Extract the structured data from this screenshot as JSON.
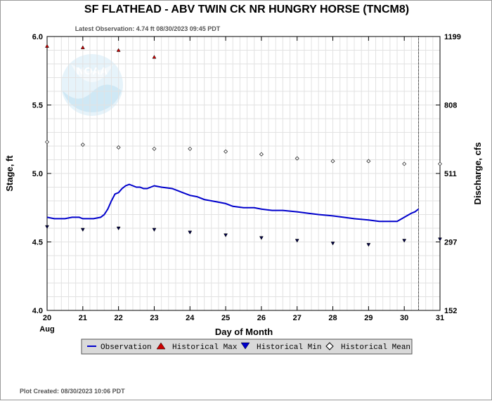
{
  "chart_data": {
    "type": "line",
    "title": "SF FLATHEAD - ABV TWIN CK NR HUNGRY HORSE  (TNCM8)",
    "subtitle": "Latest Observation: 4.74 ft 08/30/2023 09:45 PDT",
    "xlabel": "Day of Month",
    "ylabel": "Stage, ft",
    "y2label": "Discharge, cfs",
    "month_label": "Aug",
    "xlim": [
      20,
      31
    ],
    "ylim": [
      4.0,
      6.0
    ],
    "x_ticks": [
      "20",
      "21",
      "22",
      "23",
      "24",
      "25",
      "26",
      "27",
      "28",
      "29",
      "30",
      "31"
    ],
    "y_ticks": [
      "4.0",
      "4.5",
      "5.0",
      "5.5",
      "6.0"
    ],
    "y2_ticks": [
      "152",
      "297",
      "511",
      "808",
      "1199"
    ],
    "grid": true,
    "latest_observation_day": 30.4,
    "series": [
      {
        "name": "Observation",
        "color": "#0000cc",
        "points": [
          [
            20.0,
            4.68
          ],
          [
            20.2,
            4.67
          ],
          [
            20.5,
            4.67
          ],
          [
            20.7,
            4.68
          ],
          [
            20.9,
            4.68
          ],
          [
            21.0,
            4.67
          ],
          [
            21.3,
            4.67
          ],
          [
            21.5,
            4.68
          ],
          [
            21.6,
            4.7
          ],
          [
            21.7,
            4.74
          ],
          [
            21.8,
            4.8
          ],
          [
            21.9,
            4.85
          ],
          [
            22.0,
            4.86
          ],
          [
            22.1,
            4.89
          ],
          [
            22.2,
            4.91
          ],
          [
            22.3,
            4.92
          ],
          [
            22.4,
            4.91
          ],
          [
            22.5,
            4.9
          ],
          [
            22.6,
            4.9
          ],
          [
            22.7,
            4.89
          ],
          [
            22.8,
            4.89
          ],
          [
            22.9,
            4.9
          ],
          [
            23.0,
            4.91
          ],
          [
            23.2,
            4.9
          ],
          [
            23.5,
            4.89
          ],
          [
            23.8,
            4.86
          ],
          [
            24.0,
            4.84
          ],
          [
            24.2,
            4.83
          ],
          [
            24.4,
            4.81
          ],
          [
            24.6,
            4.8
          ],
          [
            24.8,
            4.79
          ],
          [
            25.0,
            4.78
          ],
          [
            25.2,
            4.76
          ],
          [
            25.5,
            4.75
          ],
          [
            25.8,
            4.75
          ],
          [
            26.0,
            4.74
          ],
          [
            26.3,
            4.73
          ],
          [
            26.6,
            4.73
          ],
          [
            27.0,
            4.72
          ],
          [
            27.3,
            4.71
          ],
          [
            27.6,
            4.7
          ],
          [
            28.0,
            4.69
          ],
          [
            28.3,
            4.68
          ],
          [
            28.6,
            4.67
          ],
          [
            29.0,
            4.66
          ],
          [
            29.3,
            4.65
          ],
          [
            29.5,
            4.65
          ],
          [
            29.8,
            4.65
          ],
          [
            30.0,
            4.68
          ],
          [
            30.2,
            4.71
          ],
          [
            30.3,
            4.72
          ],
          [
            30.4,
            4.74
          ]
        ]
      },
      {
        "name": "Historical Max",
        "color": "#cc0000",
        "points": [
          [
            20,
            5.93
          ],
          [
            21,
            5.92
          ],
          [
            22,
            5.9
          ],
          [
            23,
            5.85
          ]
        ]
      },
      {
        "name": "Historical Min",
        "color": "#0000cc",
        "points": [
          [
            20,
            4.61
          ],
          [
            21,
            4.59
          ],
          [
            22,
            4.6
          ],
          [
            23,
            4.59
          ],
          [
            24,
            4.57
          ],
          [
            25,
            4.55
          ],
          [
            26,
            4.53
          ],
          [
            27,
            4.51
          ],
          [
            28,
            4.49
          ],
          [
            29,
            4.48
          ],
          [
            30,
            4.51
          ],
          [
            31,
            4.52
          ]
        ]
      },
      {
        "name": "Historical Mean",
        "color": "#000000",
        "points": [
          [
            20,
            5.23
          ],
          [
            21,
            5.21
          ],
          [
            22,
            5.19
          ],
          [
            23,
            5.18
          ],
          [
            24,
            5.18
          ],
          [
            25,
            5.16
          ],
          [
            26,
            5.14
          ],
          [
            27,
            5.11
          ],
          [
            28,
            5.09
          ],
          [
            29,
            5.09
          ],
          [
            30,
            5.07
          ],
          [
            31,
            5.07
          ]
        ]
      }
    ],
    "legend": {
      "placement": "bottom",
      "entries": [
        "Observation",
        "Historical Max",
        "Historical Min",
        "Historical Mean"
      ]
    }
  },
  "logo": {
    "name": "noaa-logo",
    "text": "NOAA"
  },
  "footer": {
    "text": "Plot Created: 08/30/2023 10:06 PDT"
  }
}
